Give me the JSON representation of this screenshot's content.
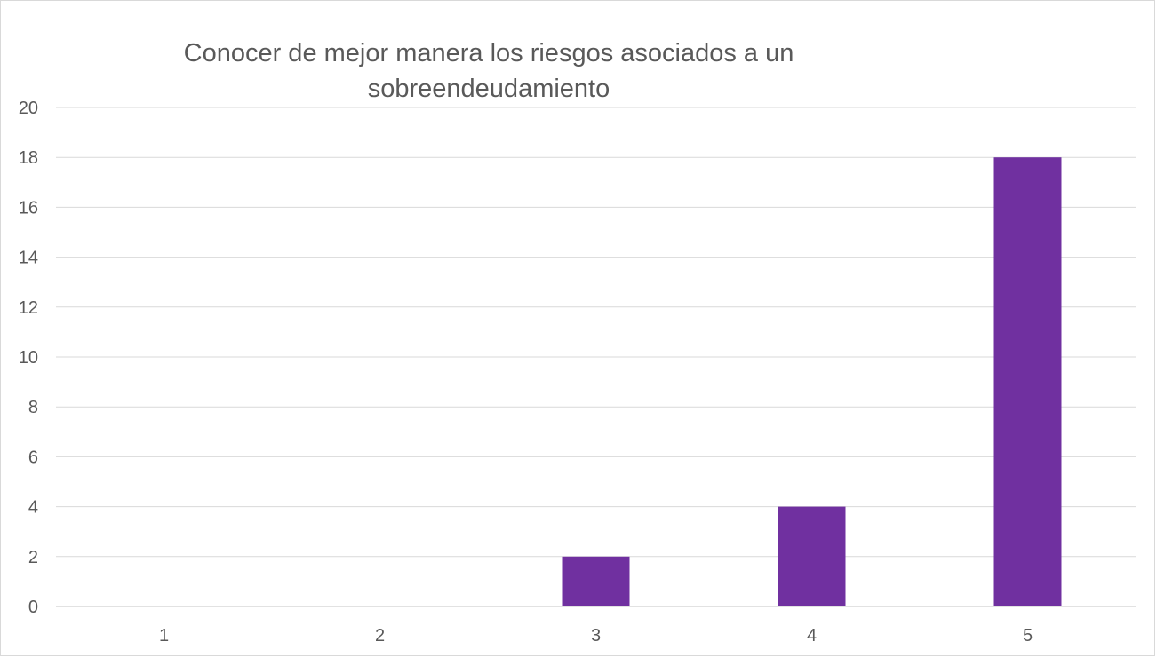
{
  "chart_data": {
    "type": "bar",
    "title": "Conocer de mejor manera los riesgos asociados a un sobreendeudamiento",
    "categories": [
      "1",
      "2",
      "3",
      "4",
      "5"
    ],
    "values": [
      0,
      0,
      2,
      4,
      18
    ],
    "ylim": [
      0,
      20
    ],
    "yticks": [
      "0",
      "2",
      "4",
      "6",
      "8",
      "10",
      "12",
      "14",
      "16",
      "18",
      "20"
    ],
    "xlabel": "",
    "ylabel": "",
    "grid": true,
    "legend": "none",
    "bar_color": "#7030a0",
    "grid_color": "#d9d9d9",
    "text_color": "#595959"
  }
}
